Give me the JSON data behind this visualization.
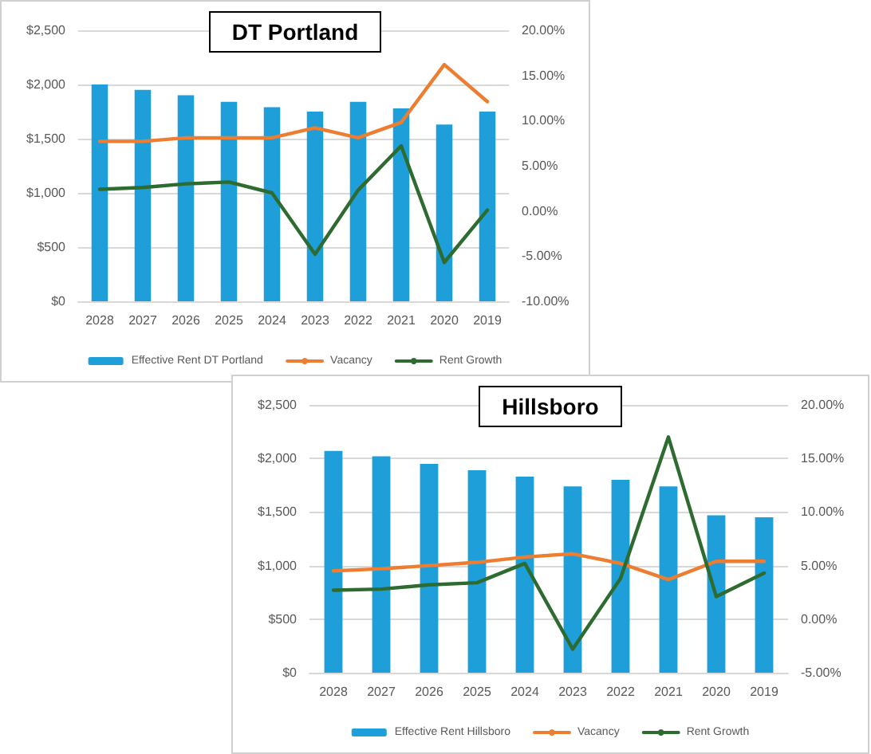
{
  "chart_data": [
    {
      "type": "bar",
      "title": "DT Portland",
      "categories": [
        "2028",
        "2027",
        "2026",
        "2025",
        "2024",
        "2023",
        "2022",
        "2021",
        "2020",
        "2019"
      ],
      "series": [
        {
          "name": "Effective Rent DT Portland",
          "color": "#1f9fd9",
          "values": [
            2000,
            1950,
            1900,
            1840,
            1790,
            1750,
            1840,
            1780,
            1630,
            1750
          ]
        },
        {
          "name": "Vacancy",
          "type": "line",
          "axis": "y2",
          "color": "#ed7d31",
          "values": [
            7.7,
            7.7,
            8.1,
            8.1,
            8.1,
            9.2,
            8.1,
            9.8,
            16.2,
            12.1
          ]
        },
        {
          "name": "Rent Growth",
          "type": "line",
          "axis": "y2",
          "color": "#2e6b30",
          "values": [
            2.4,
            2.6,
            3.0,
            3.2,
            2.0,
            -4.8,
            2.3,
            7.2,
            -5.7,
            0.1
          ]
        }
      ],
      "ylim": [
        0,
        2500
      ],
      "yticks": [
        {
          "value": 0,
          "label": "$0"
        },
        {
          "value": 500,
          "label": "$500"
        },
        {
          "value": 1000,
          "label": "$1,000"
        },
        {
          "value": 1500,
          "label": "$1,500"
        },
        {
          "value": 2000,
          "label": "$2,000"
        },
        {
          "value": 2500,
          "label": "$2,500"
        }
      ],
      "y2lim": [
        -10,
        20
      ],
      "y2ticks": [
        {
          "value": -10,
          "label": "-10.00%"
        },
        {
          "value": -5,
          "label": "-5.00%"
        },
        {
          "value": 0,
          "label": "0.00%"
        },
        {
          "value": 5,
          "label": "5.00%"
        },
        {
          "value": 10,
          "label": "10.00%"
        },
        {
          "value": 15,
          "label": "15.00%"
        },
        {
          "value": 20,
          "label": "20.00%"
        }
      ],
      "grid": "y",
      "legend": "bottom",
      "marker": "none",
      "line_style": "solid"
    },
    {
      "type": "bar",
      "title": "Hillsboro",
      "categories": [
        "2028",
        "2027",
        "2026",
        "2025",
        "2024",
        "2023",
        "2022",
        "2021",
        "2020",
        "2019"
      ],
      "series": [
        {
          "name": "Effective Rent Hillsboro",
          "color": "#1f9fd9",
          "values": [
            2070,
            2020,
            1950,
            1890,
            1830,
            1740,
            1800,
            1740,
            1470,
            1450
          ]
        },
        {
          "name": "Vacancy",
          "type": "line",
          "axis": "y2",
          "color": "#ed7d31",
          "values": [
            4.5,
            4.7,
            5.0,
            5.3,
            5.8,
            6.1,
            5.2,
            3.7,
            5.4,
            5.4
          ]
        },
        {
          "name": "Rent Growth",
          "type": "line",
          "axis": "y2",
          "color": "#2e6b30",
          "values": [
            2.7,
            2.8,
            3.2,
            3.4,
            5.2,
            -2.8,
            3.8,
            17.0,
            2.1,
            4.3
          ]
        }
      ],
      "ylim": [
        0,
        2500
      ],
      "yticks": [
        {
          "value": 0,
          "label": "$0"
        },
        {
          "value": 500,
          "label": "$500"
        },
        {
          "value": 1000,
          "label": "$1,000"
        },
        {
          "value": 1500,
          "label": "$1,500"
        },
        {
          "value": 2000,
          "label": "$2,000"
        },
        {
          "value": 2500,
          "label": "$2,500"
        }
      ],
      "y2lim": [
        -5,
        20
      ],
      "y2ticks": [
        {
          "value": -5,
          "label": "-5.00%"
        },
        {
          "value": 0,
          "label": "0.00%"
        },
        {
          "value": 5,
          "label": "5.00%"
        },
        {
          "value": 10,
          "label": "10.00%"
        },
        {
          "value": 15,
          "label": "15.00%"
        },
        {
          "value": 20,
          "label": "20.00%"
        }
      ],
      "grid": "y",
      "legend": "bottom",
      "marker": "none",
      "line_style": "solid"
    }
  ]
}
